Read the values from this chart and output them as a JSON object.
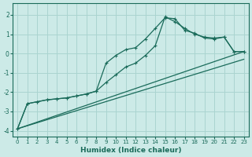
{
  "xlabel": "Humidex (Indice chaleur)",
  "background_color": "#cceae7",
  "grid_color": "#aad4d0",
  "line_color": "#1a6b5a",
  "xlim": [
    -0.5,
    23.5
  ],
  "ylim": [
    -4.3,
    2.6
  ],
  "xticks": [
    0,
    1,
    2,
    3,
    4,
    5,
    6,
    7,
    8,
    9,
    10,
    11,
    12,
    13,
    14,
    15,
    16,
    17,
    18,
    19,
    20,
    21,
    22,
    23
  ],
  "yticks": [
    -4,
    -3,
    -2,
    -1,
    0,
    1,
    2
  ],
  "curve1_x": [
    0,
    1,
    2,
    3,
    4,
    5,
    6,
    7,
    8,
    9,
    10,
    11,
    12,
    13,
    14,
    15,
    16,
    17,
    18,
    19,
    20,
    21,
    22,
    23
  ],
  "curve1_y": [
    -3.9,
    -2.6,
    -2.5,
    -2.4,
    -2.35,
    -2.3,
    -2.2,
    -2.1,
    -1.95,
    -1.5,
    -1.1,
    -0.7,
    -0.5,
    -0.1,
    0.4,
    1.9,
    1.65,
    1.3,
    1.0,
    0.85,
    0.8,
    0.85,
    0.1,
    0.1
  ],
  "curve2_x": [
    0,
    1,
    2,
    3,
    4,
    5,
    6,
    7,
    8,
    9,
    10,
    11,
    12,
    13,
    14,
    15,
    16,
    17,
    18,
    19,
    20,
    21,
    22,
    23
  ],
  "curve2_y": [
    -3.9,
    -2.6,
    -2.5,
    -2.4,
    -2.35,
    -2.3,
    -2.2,
    -2.1,
    -1.95,
    -0.5,
    -0.1,
    0.2,
    0.3,
    0.75,
    1.3,
    1.85,
    1.8,
    1.2,
    1.05,
    0.8,
    0.75,
    0.85,
    0.1,
    0.1
  ],
  "line1_x": [
    0,
    23
  ],
  "line1_y": [
    -3.9,
    0.1
  ],
  "line2_x": [
    0,
    23
  ],
  "line2_y": [
    -3.9,
    -0.3
  ]
}
